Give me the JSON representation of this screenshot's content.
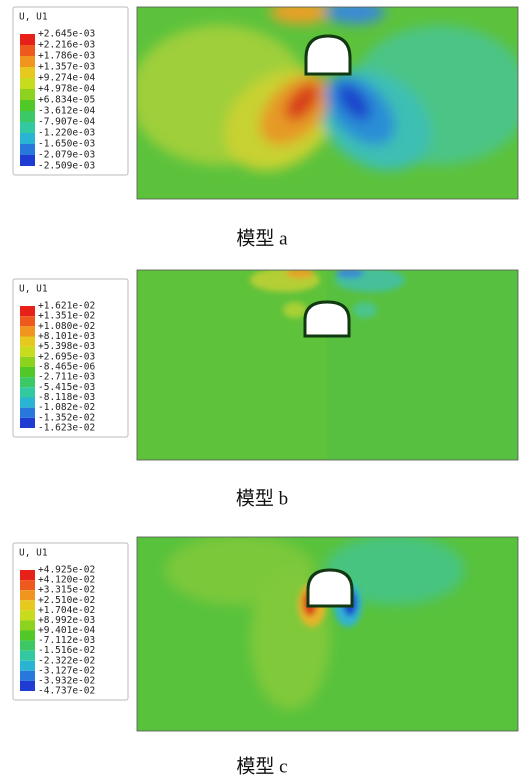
{
  "panels": [
    {
      "legend_title": "U, U1",
      "legend_labels": [
        "+2.645e-03",
        "+2.216e-03",
        "+1.786e-03",
        "+1.357e-03",
        "+9.274e-04",
        "+4.978e-04",
        "+6.834e-05",
        "-3.612e-04",
        "-7.907e-04",
        "-1.220e-03",
        "-1.650e-03",
        "-2.079e-03",
        "-2.509e-03"
      ],
      "caption": "模型 a"
    },
    {
      "legend_title": "U, U1",
      "legend_labels": [
        "+1.621e-02",
        "+1.351e-02",
        "+1.080e-02",
        "+8.101e-03",
        "+5.398e-03",
        "+2.695e-03",
        "-8.465e-06",
        "-2.711e-03",
        "-5.415e-03",
        "-8.118e-03",
        "-1.082e-02",
        "-1.352e-02",
        "-1.623e-02"
      ],
      "caption": "模型 b"
    },
    {
      "legend_title": "U, U1",
      "legend_labels": [
        "+4.925e-02",
        "+4.120e-02",
        "+3.315e-02",
        "+2.510e-02",
        "+1.704e-02",
        "+8.992e-03",
        "+9.401e-04",
        "-7.112e-03",
        "-1.516e-02",
        "-2.322e-02",
        "-3.127e-02",
        "-3.932e-02",
        "-4.737e-02"
      ],
      "caption": "模型 c"
    }
  ]
}
